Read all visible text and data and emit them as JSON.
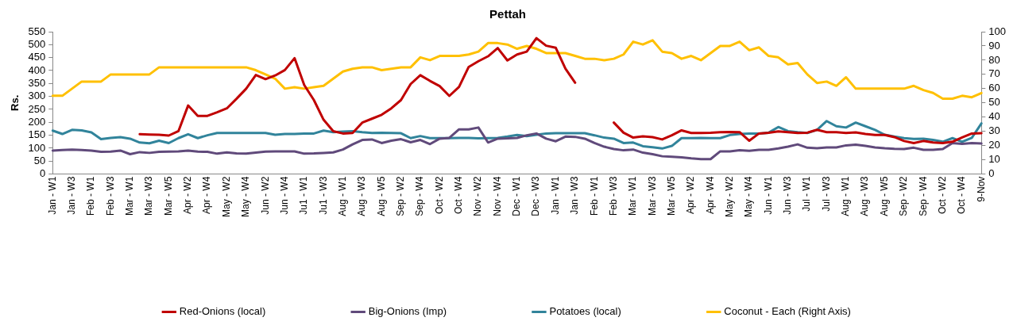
{
  "chart_data": {
    "type": "line",
    "title": "Pettah",
    "ylabel": "Rs.",
    "categories": [
      "Jan - W1",
      null,
      "Jan - W3",
      null,
      "Feb - W1",
      null,
      "Feb - W3",
      null,
      "Mar - W1",
      null,
      "Mar - W3",
      null,
      "Mar - W5",
      null,
      "Apr - W2",
      null,
      "Apr - W4",
      null,
      "May - W2",
      null,
      "May - W4",
      null,
      "Jun - W2",
      null,
      "Jun - W4",
      null,
      "Ju1 - W1",
      null,
      "Ju1 - W3",
      null,
      "Aug - W1",
      null,
      "Aug - W3",
      null,
      "Aug - W5",
      null,
      "Sep - W2",
      null,
      "Sep - W4",
      null,
      "Oct - W2",
      null,
      "Oct - W4",
      null,
      "Nov - W2",
      null,
      "Nov - W4",
      null,
      "Dec - W1",
      null,
      "Dec - W3",
      null,
      "Jan - W1",
      null,
      "Jan - W3",
      null,
      "Feb - W1",
      null,
      "Feb - W3",
      null,
      "Mar - W1",
      null,
      "Mar - W3",
      null,
      "Mar - W5",
      null,
      "Apr - W2",
      null,
      "Apr - W4",
      null,
      "May - W2",
      null,
      "May - W4",
      null,
      "Jun - W1",
      null,
      "Jun - W3",
      null,
      "Jul - W1",
      null,
      "Jul - W3",
      null,
      "Aug - W1",
      null,
      "Aug - W3",
      null,
      "Aug - W5",
      null,
      "Sep - W2",
      null,
      "Sep - W4",
      null,
      "Oct - W2",
      null,
      "Oct - W4",
      null,
      "9-Nov"
    ],
    "series": [
      {
        "name": "Red-Onions (local)",
        "color": "#c00000",
        "values": [
          null,
          null,
          null,
          null,
          null,
          null,
          null,
          null,
          null,
          154,
          153,
          152,
          149,
          166,
          265,
          225,
          225,
          239,
          254,
          291,
          330,
          383,
          367,
          381,
          402,
          448,
          344,
          286,
          210,
          166,
          157,
          159,
          199,
          214,
          229,
          254,
          286,
          348,
          382,
          360,
          340,
          302,
          337,
          414,
          436,
          455,
          487,
          439,
          462,
          473,
          525,
          496,
          488,
          407,
          353,
          null,
          null,
          null,
          199,
          160,
          141,
          146,
          143,
          134,
          150,
          169,
          159,
          159,
          160,
          162,
          163,
          162,
          129,
          157,
          160,
          165,
          162,
          159,
          160,
          171,
          162,
          162,
          159,
          161,
          155,
          151,
          151,
          143,
          128,
          120,
          128,
          122,
          120,
          125,
          142,
          157,
          158
        ]
      },
      {
        "name": "Big-Onions (Imp)",
        "color": "#604a7b",
        "values": [
          91,
          93,
          95,
          93,
          91,
          86,
          87,
          91,
          77,
          85,
          82,
          86,
          87,
          88,
          91,
          87,
          86,
          79,
          84,
          80,
          79,
          83,
          87,
          88,
          88,
          88,
          79,
          80,
          82,
          84,
          95,
          115,
          132,
          134,
          120,
          129,
          135,
          123,
          132,
          116,
          137,
          140,
          173,
          173,
          180,
          122,
          137,
          138,
          140,
          150,
          157,
          137,
          127,
          145,
          144,
          137,
          120,
          106,
          97,
          92,
          95,
          83,
          77,
          69,
          67,
          65,
          61,
          58,
          58,
          88,
          88,
          92,
          90,
          94,
          94,
          99,
          106,
          115,
          102,
          100,
          103,
          103,
          111,
          114,
          109,
          103,
          100,
          98,
          97,
          102,
          94,
          94,
          97,
          120,
          117,
          120,
          118
        ]
      },
      {
        "name": "Potatoes (local)",
        "color": "#31849b",
        "values": [
          168,
          155,
          171,
          169,
          161,
          135,
          140,
          143,
          137,
          122,
          119,
          129,
          120,
          139,
          154,
          139,
          150,
          159,
          159,
          159,
          159,
          159,
          159,
          152,
          155,
          155,
          157,
          157,
          168,
          162,
          164,
          166,
          162,
          159,
          160,
          159,
          158,
          139,
          147,
          139,
          139,
          139,
          140,
          140,
          138,
          139,
          140,
          145,
          151,
          147,
          152,
          157,
          158,
          158,
          158,
          158,
          150,
          141,
          137,
          120,
          122,
          108,
          104,
          99,
          109,
          139,
          139,
          140,
          139,
          139,
          151,
          155,
          157,
          157,
          160,
          182,
          166,
          162,
          159,
          171,
          205,
          185,
          180,
          199,
          185,
          171,
          152,
          145,
          139,
          136,
          137,
          132,
          125,
          139,
          125,
          140,
          196
        ]
      },
      {
        "name": "Coconut - Each (Right Axis)",
        "color": "#ffc000",
        "axis": "y2",
        "values": [
          55,
          55,
          60,
          65,
          65,
          65,
          70,
          70,
          70,
          70,
          70,
          75,
          75,
          75,
          75,
          75,
          75,
          75,
          75,
          75,
          75,
          73,
          70,
          67,
          60,
          61,
          60,
          61,
          62,
          67,
          72,
          74,
          75,
          75,
          73,
          74,
          75,
          75,
          82,
          80,
          83,
          83,
          83,
          84,
          86,
          92,
          92,
          91,
          88,
          90,
          88,
          85,
          85,
          85,
          83,
          81,
          81,
          80,
          81,
          84,
          93,
          91,
          94,
          86,
          85,
          81,
          83,
          80,
          85,
          90,
          90,
          93,
          87,
          89,
          83,
          82,
          77,
          78,
          70,
          64,
          65,
          62,
          68,
          60,
          60,
          60,
          60,
          60,
          60,
          62,
          59,
          57,
          53,
          53,
          55,
          54,
          57
        ]
      }
    ],
    "ylim": [
      0,
      550
    ],
    "yticks": [
      0,
      50,
      100,
      150,
      200,
      250,
      300,
      350,
      400,
      450,
      500,
      550
    ],
    "y2lim": [
      0,
      100
    ],
    "y2ticks": [
      0,
      10,
      20,
      30,
      40,
      50,
      60,
      70,
      80,
      90,
      100
    ],
    "grid": false,
    "legend": "bottom",
    "marker": "none",
    "line_style": "solid"
  }
}
